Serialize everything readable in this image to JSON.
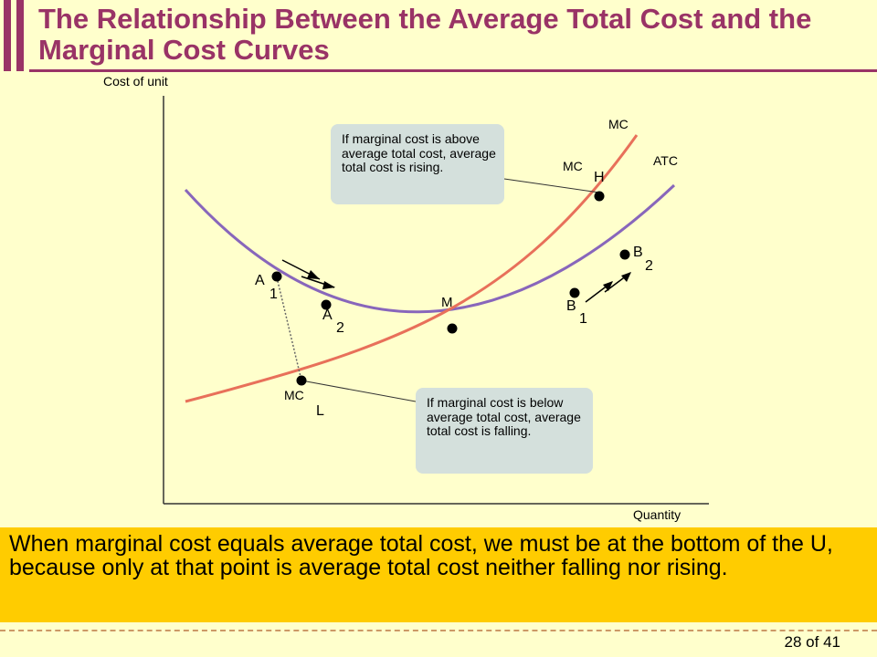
{
  "slide": {
    "title": "The Relationship Between the Average Total Cost and the Marginal Cost Curves",
    "caption": "When marginal cost equals average total cost, we must be at the bottom of the U, because only at that point is average total cost neither falling nor rising.",
    "page_number": "28 of 41"
  },
  "diagram": {
    "y_axis_label": "Cost of unit",
    "x_axis_label": "Quantity",
    "curve_labels": {
      "mc_top": "MC",
      "atc": "ATC"
    },
    "points": {
      "a1": {
        "letter": "A",
        "sub": "1"
      },
      "a2": {
        "letter": "A",
        "sub": "2"
      },
      "m": {
        "letter": "M"
      },
      "b1": {
        "letter": "B",
        "sub": "1"
      },
      "b2": {
        "letter": "B",
        "sub": "2"
      },
      "mch": {
        "letter": "MC",
        "sub": "H"
      },
      "mcl": {
        "letter": "MC",
        "sub": "L"
      }
    },
    "callouts": {
      "above": "If marginal cost is above average total cost, average total cost is rising.",
      "below": "If marginal cost is below average total cost, average total cost is falling."
    },
    "colors": {
      "mc_curve": "#e8705a",
      "atc_curve": "#8866bb",
      "accent": "#993366",
      "caption_bg": "#ffcc00",
      "callout_bg": "#d4e0dc"
    }
  }
}
